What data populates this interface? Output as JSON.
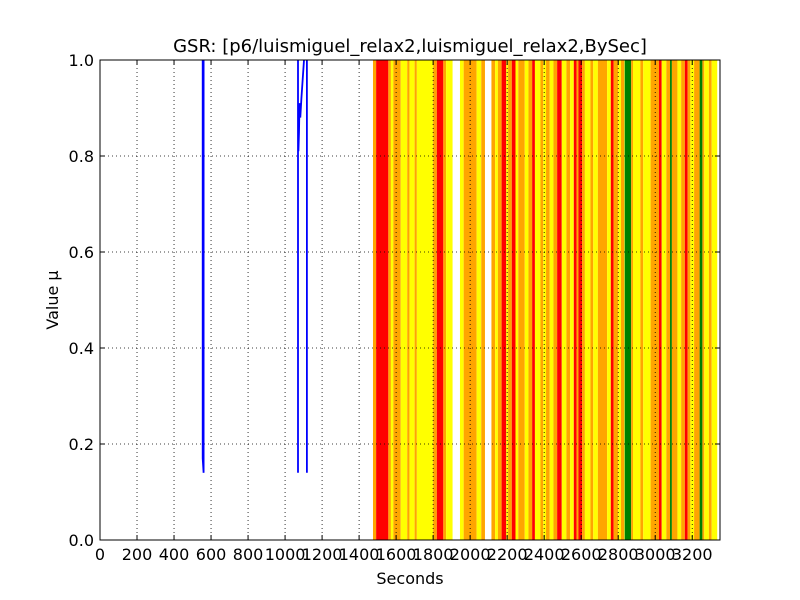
{
  "chart_data": {
    "type": "line",
    "title": "GSR: [p6/luismiguel_relax2,luismiguel_relax2,BySec]",
    "xlabel": "Seconds",
    "ylabel": "Value µ",
    "xlim": [
      0,
      3350
    ],
    "ylim": [
      0.0,
      1.0
    ],
    "xticks": [
      "0",
      "200",
      "400",
      "600",
      "800",
      "1000",
      "1200",
      "1400",
      "1600",
      "1800",
      "2000",
      "2200",
      "2400",
      "2600",
      "2800",
      "3000",
      "3200"
    ],
    "yticks": [
      "0.0",
      "0.2",
      "0.4",
      "0.6",
      "0.8",
      "1.0"
    ],
    "grid": true,
    "colors": {
      "line": "#0000ff",
      "red": "#ff0000",
      "orange": "#ffa500",
      "yellow": "#ffff00",
      "green": "#008000"
    },
    "series": [
      {
        "values": [
          [
            555,
            1.0
          ],
          [
            555,
            0.17
          ],
          [
            560,
            0.14
          ],
          [
            560,
            1.0
          ]
        ]
      },
      {
        "values": [
          [
            1070,
            1.0
          ],
          [
            1070,
            0.14
          ]
        ]
      },
      {
        "values": [
          [
            1072,
            0.81
          ],
          [
            1075,
            0.85
          ],
          [
            1078,
            0.91
          ],
          [
            1082,
            0.88
          ],
          [
            1088,
            0.92
          ],
          [
            1095,
            0.96
          ],
          [
            1102,
            1.0
          ]
        ]
      },
      {
        "values": [
          [
            1118,
            1.0
          ],
          [
            1118,
            0.14
          ]
        ]
      }
    ],
    "bands": [
      {
        "x0": 1475,
        "x1": 1492,
        "color": "orange"
      },
      {
        "x0": 1492,
        "x1": 1558,
        "color": "red"
      },
      {
        "x0": 1558,
        "x1": 1572,
        "color": "orange"
      },
      {
        "x0": 1572,
        "x1": 1585,
        "color": "yellow"
      },
      {
        "x0": 1585,
        "x1": 1625,
        "color": "orange"
      },
      {
        "x0": 1625,
        "x1": 1660,
        "color": "yellow"
      },
      {
        "x0": 1660,
        "x1": 1672,
        "color": "orange"
      },
      {
        "x0": 1672,
        "x1": 1700,
        "color": "yellow"
      },
      {
        "x0": 1700,
        "x1": 1712,
        "color": "orange"
      },
      {
        "x0": 1712,
        "x1": 1800,
        "color": "yellow"
      },
      {
        "x0": 1800,
        "x1": 1820,
        "color": "orange"
      },
      {
        "x0": 1820,
        "x1": 1855,
        "color": "red"
      },
      {
        "x0": 1855,
        "x1": 1870,
        "color": "orange"
      },
      {
        "x0": 1870,
        "x1": 1905,
        "color": "yellow"
      },
      {
        "x0": 1945,
        "x1": 1965,
        "color": "yellow"
      },
      {
        "x0": 1965,
        "x1": 2035,
        "color": "orange"
      },
      {
        "x0": 2035,
        "x1": 2060,
        "color": "yellow"
      },
      {
        "x0": 2060,
        "x1": 2080,
        "color": "orange"
      },
      {
        "x0": 2115,
        "x1": 2135,
        "color": "orange"
      },
      {
        "x0": 2135,
        "x1": 2150,
        "color": "yellow"
      },
      {
        "x0": 2150,
        "x1": 2170,
        "color": "orange"
      },
      {
        "x0": 2170,
        "x1": 2195,
        "color": "red"
      },
      {
        "x0": 2195,
        "x1": 2205,
        "color": "yellow"
      },
      {
        "x0": 2205,
        "x1": 2225,
        "color": "orange"
      },
      {
        "x0": 2225,
        "x1": 2245,
        "color": "red"
      },
      {
        "x0": 2245,
        "x1": 2260,
        "color": "yellow"
      },
      {
        "x0": 2260,
        "x1": 2295,
        "color": "orange"
      },
      {
        "x0": 2295,
        "x1": 2315,
        "color": "yellow"
      },
      {
        "x0": 2315,
        "x1": 2335,
        "color": "orange"
      },
      {
        "x0": 2335,
        "x1": 2350,
        "color": "red"
      },
      {
        "x0": 2350,
        "x1": 2380,
        "color": "yellow"
      },
      {
        "x0": 2380,
        "x1": 2395,
        "color": "orange"
      },
      {
        "x0": 2395,
        "x1": 2410,
        "color": "yellow"
      },
      {
        "x0": 2410,
        "x1": 2430,
        "color": "orange"
      },
      {
        "x0": 2430,
        "x1": 2450,
        "color": "yellow"
      },
      {
        "x0": 2450,
        "x1": 2470,
        "color": "orange"
      },
      {
        "x0": 2470,
        "x1": 2495,
        "color": "red"
      },
      {
        "x0": 2495,
        "x1": 2520,
        "color": "yellow"
      },
      {
        "x0": 2520,
        "x1": 2540,
        "color": "orange"
      },
      {
        "x0": 2540,
        "x1": 2560,
        "color": "yellow"
      },
      {
        "x0": 2560,
        "x1": 2575,
        "color": "red"
      },
      {
        "x0": 2575,
        "x1": 2585,
        "color": "orange"
      },
      {
        "x0": 2585,
        "x1": 2605,
        "color": "red"
      },
      {
        "x0": 2605,
        "x1": 2620,
        "color": "orange"
      },
      {
        "x0": 2620,
        "x1": 2650,
        "color": "yellow"
      },
      {
        "x0": 2650,
        "x1": 2665,
        "color": "orange"
      },
      {
        "x0": 2665,
        "x1": 2690,
        "color": "yellow"
      },
      {
        "x0": 2690,
        "x1": 2740,
        "color": "orange"
      },
      {
        "x0": 2740,
        "x1": 2760,
        "color": "yellow"
      },
      {
        "x0": 2760,
        "x1": 2775,
        "color": "red"
      },
      {
        "x0": 2775,
        "x1": 2800,
        "color": "orange"
      },
      {
        "x0": 2800,
        "x1": 2815,
        "color": "yellow"
      },
      {
        "x0": 2815,
        "x1": 2832,
        "color": "orange"
      },
      {
        "x0": 2832,
        "x1": 2835,
        "color": "yellow"
      },
      {
        "x0": 2835,
        "x1": 2870,
        "color": "green"
      },
      {
        "x0": 2870,
        "x1": 2880,
        "color": "orange"
      },
      {
        "x0": 2880,
        "x1": 2920,
        "color": "yellow"
      },
      {
        "x0": 2920,
        "x1": 2935,
        "color": "orange"
      },
      {
        "x0": 2935,
        "x1": 2975,
        "color": "yellow"
      },
      {
        "x0": 2975,
        "x1": 3020,
        "color": "orange"
      },
      {
        "x0": 3020,
        "x1": 3035,
        "color": "red"
      },
      {
        "x0": 3035,
        "x1": 3060,
        "color": "yellow"
      },
      {
        "x0": 3060,
        "x1": 3080,
        "color": "orange"
      },
      {
        "x0": 3080,
        "x1": 3090,
        "color": "green"
      },
      {
        "x0": 3090,
        "x1": 3120,
        "color": "orange"
      },
      {
        "x0": 3120,
        "x1": 3140,
        "color": "yellow"
      },
      {
        "x0": 3140,
        "x1": 3160,
        "color": "orange"
      },
      {
        "x0": 3160,
        "x1": 3175,
        "color": "red"
      },
      {
        "x0": 3175,
        "x1": 3190,
        "color": "orange"
      },
      {
        "x0": 3190,
        "x1": 3210,
        "color": "yellow"
      },
      {
        "x0": 3210,
        "x1": 3240,
        "color": "orange"
      },
      {
        "x0": 3240,
        "x1": 3255,
        "color": "green"
      },
      {
        "x0": 3255,
        "x1": 3265,
        "color": "orange"
      },
      {
        "x0": 3265,
        "x1": 3290,
        "color": "yellow"
      },
      {
        "x0": 3290,
        "x1": 3305,
        "color": "orange"
      },
      {
        "x0": 3305,
        "x1": 3335,
        "color": "yellow"
      }
    ]
  }
}
